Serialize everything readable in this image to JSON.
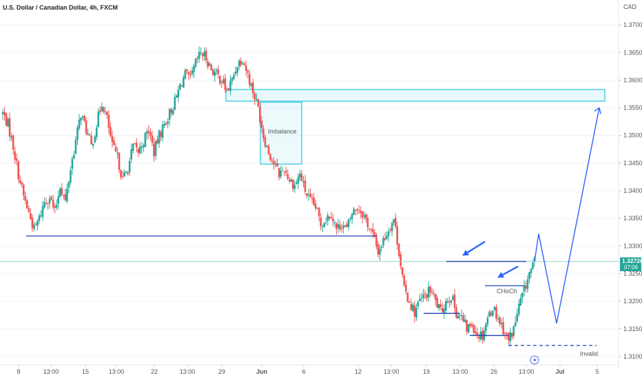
{
  "chart_data": {
    "type": "candlestick",
    "title": "U.S. Dollar / Canadian Dollar, 4h, FXCM",
    "currency": "CAD",
    "ylim": [
      1.3085,
      1.3735
    ],
    "y_ticks": [
      "1.37000",
      "1.36500",
      "1.36000",
      "1.35500",
      "1.35000",
      "1.34500",
      "1.34000",
      "1.33500",
      "1.33000",
      "1.32500",
      "1.32000",
      "1.31500",
      "1.31000"
    ],
    "x_ticks": [
      "8",
      "13:00",
      "15",
      "13:00",
      "22",
      "13:00",
      "29",
      "Jun",
      "6",
      "12",
      "13:00",
      "19",
      "13:00",
      "26",
      "13:00",
      "Jul",
      "5"
    ],
    "last_price": "1.32726",
    "countdown": "07:06",
    "colors": {
      "up": "#26a69a",
      "down": "#ef5350",
      "zone": "#4dd0e1",
      "drawing": "#1e40af",
      "arrow": "#2962ff"
    },
    "close_path": [
      1.354,
      1.352,
      1.348,
      1.343,
      1.339,
      1.336,
      1.333,
      1.335,
      1.338,
      1.339,
      1.336,
      1.341,
      1.338,
      1.344,
      1.349,
      1.354,
      1.351,
      1.348,
      1.352,
      1.356,
      1.353,
      1.348,
      1.346,
      1.342,
      1.344,
      1.348,
      1.347,
      1.349,
      1.351,
      1.347,
      1.35,
      1.352,
      1.354,
      1.356,
      1.359,
      1.361,
      1.36,
      1.363,
      1.365,
      1.364,
      1.362,
      1.361,
      1.36,
      1.358,
      1.36,
      1.363,
      1.364,
      1.361,
      1.358,
      1.355,
      1.35,
      1.347,
      1.345,
      1.343,
      1.344,
      1.342,
      1.341,
      1.343,
      1.34,
      1.338,
      1.337,
      1.334,
      1.335,
      1.336,
      1.333,
      1.334,
      1.333,
      1.336,
      1.337,
      1.336,
      1.334,
      1.332,
      1.329,
      1.331,
      1.333,
      1.335,
      1.329,
      1.322,
      1.32,
      1.318,
      1.32,
      1.321,
      1.322,
      1.32,
      1.318,
      1.32,
      1.321,
      1.318,
      1.317,
      1.315,
      1.316,
      1.314,
      1.314,
      1.317,
      1.319,
      1.317,
      1.315,
      1.313,
      1.315,
      1.319,
      1.322,
      1.325,
      1.327
    ],
    "annotations": {
      "imbalance": "Imbalance",
      "choch": "CHoCh",
      "invalid": "Invalid"
    },
    "levels": {
      "supply_zone": [
        1.3562,
        1.3583
      ],
      "imbalance_zone": [
        1.3448,
        1.356
      ],
      "support_line": 1.3318,
      "high_line": 1.3272,
      "choch_line": 1.3228,
      "low_line_1": 1.3178,
      "low_line_2": 1.3138,
      "invalid_line": 1.312
    },
    "projection": [
      1.3272,
      1.3322,
      1.316,
      1.355
    ]
  }
}
